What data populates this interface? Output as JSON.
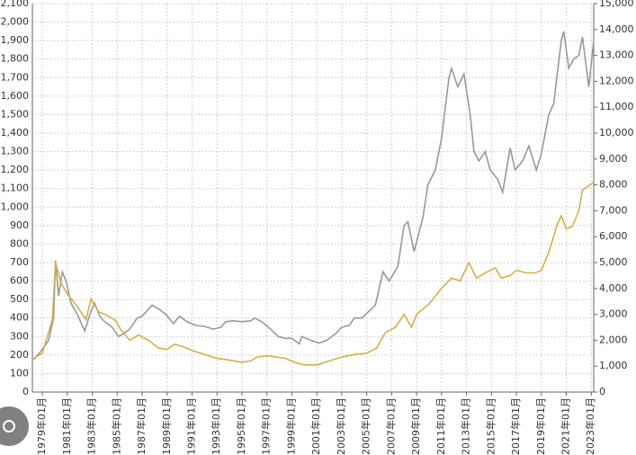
{
  "chart_data": {
    "type": "line",
    "xlim": [
      1978.2,
      2023.2
    ],
    "xticks": [
      {
        "value": 1979,
        "label": "1979年01月"
      },
      {
        "value": 1981,
        "label": "1981年01月"
      },
      {
        "value": 1983,
        "label": "1983年01月"
      },
      {
        "value": 1985,
        "label": "1985年01月"
      },
      {
        "value": 1987,
        "label": "1987年01月"
      },
      {
        "value": 1989,
        "label": "1989年01月"
      },
      {
        "value": 1991,
        "label": "1991年01月"
      },
      {
        "value": 1993,
        "label": "1993年01月"
      },
      {
        "value": 1995,
        "label": "1995年01月"
      },
      {
        "value": 1997,
        "label": "1997年01月"
      },
      {
        "value": 1999,
        "label": "1999年01月"
      },
      {
        "value": 2001,
        "label": "2001年01月"
      },
      {
        "value": 2003,
        "label": "2003年01月"
      },
      {
        "value": 2005,
        "label": "2005年01月"
      },
      {
        "value": 2007,
        "label": "2007年01月"
      },
      {
        "value": 2009,
        "label": "2009年01月"
      },
      {
        "value": 2011,
        "label": "2011年01月"
      },
      {
        "value": 2013,
        "label": "2013年01月"
      },
      {
        "value": 2015,
        "label": "2015年01月"
      },
      {
        "value": 2017,
        "label": "2017年01月"
      },
      {
        "value": 2019,
        "label": "2019年01月"
      },
      {
        "value": 2021,
        "label": "2021年01月"
      },
      {
        "value": 2023,
        "label": "2023年01月"
      }
    ],
    "ylim": [
      0,
      2100
    ],
    "yticks": [
      0,
      100,
      200,
      300,
      400,
      500,
      600,
      700,
      800,
      900,
      {
        "value": 1000,
        "label": "1,000"
      },
      {
        "value": 1100,
        "label": "1,100"
      },
      {
        "value": 1200,
        "label": "1,200"
      },
      {
        "value": 1300,
        "label": "1,300"
      },
      {
        "value": 1400,
        "label": "1,400"
      },
      {
        "value": 1500,
        "label": "1,500"
      },
      {
        "value": 1600,
        "label": "1,600"
      },
      {
        "value": 1700,
        "label": "1,700"
      },
      {
        "value": 1800,
        "label": "1,800"
      },
      {
        "value": 1900,
        "label": "1,900"
      },
      {
        "value": 2000,
        "label": "2,000"
      },
      {
        "value": 2100,
        "label": "2,100"
      }
    ],
    "y2lim": [
      0,
      15000
    ],
    "y2ticks": [
      0,
      {
        "value": 1000,
        "label": "1,000"
      },
      {
        "value": 2000,
        "label": "2,000"
      },
      {
        "value": 3000,
        "label": "3,000"
      },
      {
        "value": 4000,
        "label": "4,000"
      },
      {
        "value": 5000,
        "label": "5,000"
      },
      {
        "value": 6000,
        "label": "6,000"
      },
      {
        "value": 7000,
        "label": "7,000"
      },
      {
        "value": 8000,
        "label": "8,000"
      },
      {
        "value": 9000,
        "label": "9,000"
      },
      {
        "value": 10000,
        "label": "10,000"
      },
      {
        "value": 11000,
        "label": "11,000"
      },
      {
        "value": 12000,
        "label": "12,000"
      },
      {
        "value": 13000,
        "label": "13,000"
      },
      {
        "value": 14000,
        "label": "14,000"
      },
      {
        "value": 15000,
        "label": "15,000"
      }
    ],
    "grid": true,
    "series": [
      {
        "color": "#999999",
        "x": [
          1978.3,
          1979.0,
          1979.5,
          1979.9,
          1980.05,
          1980.3,
          1980.6,
          1980.9,
          1981.3,
          1981.8,
          1982.4,
          1982.9,
          1983.2,
          1983.6,
          1984.0,
          1984.6,
          1985.1,
          1985.6,
          1986.0,
          1986.6,
          1987.0,
          1987.8,
          1988.3,
          1988.9,
          1989.5,
          1990.0,
          1990.6,
          1991.3,
          1992.0,
          1992.7,
          1993.3,
          1993.7,
          1994.3,
          1995.0,
          1995.7,
          1996.0,
          1996.6,
          1997.3,
          1997.9,
          1998.5,
          1999.0,
          1999.6,
          1999.8,
          2000.5,
          2001.2,
          2001.8,
          2002.5,
          2003.0,
          2003.6,
          2004.0,
          2004.6,
          2005.0,
          2005.7,
          2006.3,
          2006.8,
          2007.5,
          2008.0,
          2008.3,
          2008.8,
          2009.5,
          2009.9,
          2010.5,
          2011.0,
          2011.6,
          2011.8,
          2012.3,
          2012.8,
          2013.3,
          2013.6,
          2014.0,
          2014.5,
          2014.9,
          2015.5,
          2015.9,
          2016.5,
          2016.9,
          2017.5,
          2018.0,
          2018.6,
          2019.0,
          2019.6,
          2020.0,
          2020.6,
          2020.8,
          2021.2,
          2021.6,
          2022.0,
          2022.3,
          2022.8,
          2023.2
        ],
        "values": [
          175,
          230,
          280,
          400,
          710,
          520,
          650,
          600,
          480,
          420,
          330,
          440,
          480,
          410,
          380,
          350,
          300,
          320,
          340,
          400,
          410,
          470,
          450,
          420,
          370,
          410,
          380,
          360,
          355,
          340,
          350,
          380,
          385,
          380,
          385,
          400,
          380,
          340,
          300,
          290,
          290,
          260,
          300,
          280,
          265,
          280,
          315,
          350,
          360,
          400,
          400,
          425,
          470,
          650,
          600,
          680,
          900,
          920,
          760,
          940,
          1120,
          1200,
          1370,
          1700,
          1750,
          1650,
          1720,
          1500,
          1300,
          1250,
          1300,
          1200,
          1150,
          1080,
          1320,
          1200,
          1250,
          1330,
          1200,
          1290,
          1500,
          1560,
          1900,
          1950,
          1750,
          1800,
          1820,
          1920,
          1650,
          1900
        ]
      },
      {
        "color": "#d4b04a",
        "axis": "y2",
        "x": [
          1978.3,
          1979.0,
          1979.8,
          1980.05,
          1980.5,
          1981.0,
          1981.8,
          1982.5,
          1982.9,
          1983.5,
          1984.0,
          1984.8,
          1985.3,
          1986.0,
          1986.7,
          1987.5,
          1988.3,
          1989.0,
          1989.6,
          1990.3,
          1991.0,
          1992.0,
          1993.0,
          1993.8,
          1995.0,
          1995.7,
          1996.2,
          1997.0,
          1997.8,
          1998.5,
          1999.2,
          2000.0,
          2001.0,
          2002.0,
          2003.0,
          2004.0,
          2005.0,
          2005.8,
          2006.5,
          2007.3,
          2008.0,
          2008.6,
          2009.0,
          2010.0,
          2011.0,
          2011.8,
          2012.5,
          2013.2,
          2013.8,
          2014.5,
          2015.3,
          2015.8,
          2016.5,
          2017.0,
          2017.8,
          2018.5,
          2019.0,
          2019.6,
          2020.3,
          2020.6,
          2021.0,
          2021.5,
          2022.0,
          2022.3,
          2023.2
        ],
        "values": [
          1300,
          1500,
          2800,
          5000,
          4200,
          3800,
          3300,
          2800,
          3600,
          3100,
          3000,
          2800,
          2400,
          2000,
          2200,
          2000,
          1700,
          1650,
          1850,
          1750,
          1600,
          1450,
          1300,
          1250,
          1150,
          1200,
          1350,
          1400,
          1350,
          1300,
          1150,
          1050,
          1050,
          1200,
          1350,
          1450,
          1500,
          1700,
          2300,
          2500,
          3000,
          2500,
          3000,
          3400,
          4000,
          4400,
          4300,
          5000,
          4400,
          4600,
          4800,
          4400,
          4500,
          4700,
          4600,
          4600,
          4700,
          5400,
          6500,
          6800,
          6300,
          6400,
          7000,
          7800,
          8100
        ]
      }
    ]
  }
}
